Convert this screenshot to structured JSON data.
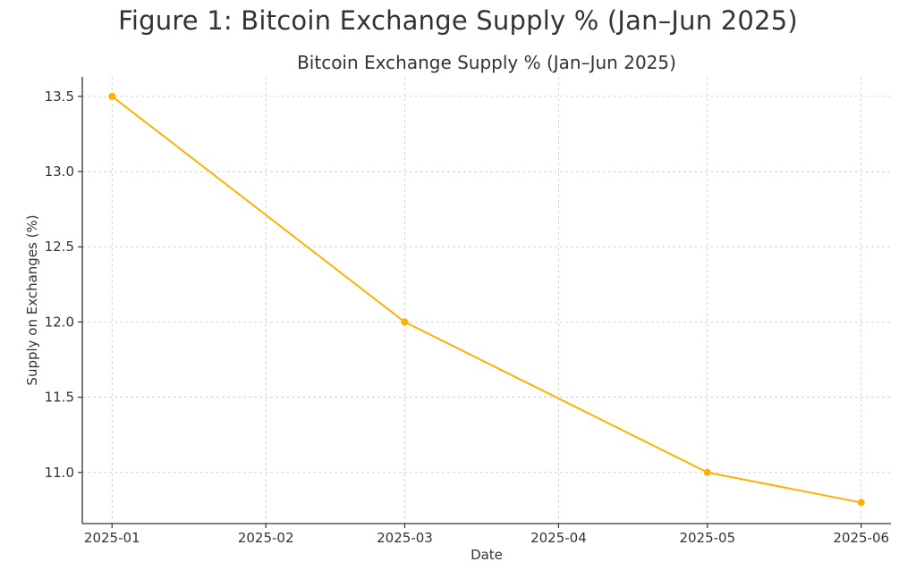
{
  "figure_title": "Figure 1: Bitcoin Exchange Supply % (Jan–Jun 2025)",
  "chart_data": {
    "type": "line",
    "title": "Bitcoin Exchange Supply % (Jan–Jun 2025)",
    "xlabel": "Date",
    "ylabel": "Supply on Exchanges (%)",
    "x_ticks": [
      "2025-01",
      "2025-02",
      "2025-03",
      "2025-04",
      "2025-05",
      "2025-06"
    ],
    "y_ticks": [
      11.0,
      11.5,
      12.0,
      12.5,
      13.0,
      13.5
    ],
    "ylim": [
      10.66,
      13.63
    ],
    "xlim": [
      "2024-12-26",
      "2025-06-07"
    ],
    "grid": true,
    "series": [
      {
        "color": "#FFB000",
        "x": [
          "2025-01-01",
          "2025-03-01",
          "2025-05-01",
          "2025-06-01"
        ],
        "values": [
          13.5,
          12.0,
          11.0,
          10.8
        ]
      }
    ]
  }
}
